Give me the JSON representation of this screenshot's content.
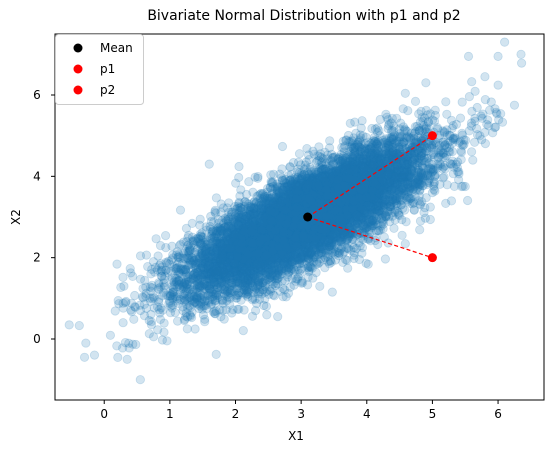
{
  "chart_data": {
    "type": "scatter",
    "title": "Bivariate Normal Distribution with p1 and p2",
    "xlabel": "X1",
    "ylabel": "X2",
    "xlim": [
      -0.75,
      6.7
    ],
    "ylim": [
      -1.5,
      7.5
    ],
    "xticks": [
      "0",
      "1",
      "2",
      "3",
      "4",
      "5",
      "6"
    ],
    "yticks": [
      "0",
      "2",
      "4",
      "6"
    ],
    "grid": false,
    "legend_position": "top-left",
    "cloud": {
      "color": "#1f77b4",
      "alpha": 0.2,
      "mean": [
        3.1,
        3.0
      ],
      "sd": [
        0.9,
        0.9
      ],
      "correlation": 0.8,
      "n": 10000
    },
    "outliers": [
      {
        "x": -0.38,
        "y": 0.33
      },
      {
        "x": -0.28,
        "y": -0.1
      },
      {
        "x": -0.3,
        "y": -0.45
      },
      {
        "x": 0.28,
        "y": -0.22
      },
      {
        "x": 0.38,
        "y": -0.22
      },
      {
        "x": 0.35,
        "y": -0.5
      },
      {
        "x": 0.55,
        "y": -1.0
      },
      {
        "x": 0.3,
        "y": 1.3
      },
      {
        "x": 0.72,
        "y": 0.35
      },
      {
        "x": 0.75,
        "y": 1.9
      },
      {
        "x": 6.1,
        "y": 7.3
      },
      {
        "x": 6.35,
        "y": 7.0
      },
      {
        "x": 6.0,
        "y": 6.95
      },
      {
        "x": 5.8,
        "y": 6.45
      },
      {
        "x": 5.55,
        "y": 6.95
      },
      {
        "x": 6.25,
        "y": 5.75
      },
      {
        "x": 5.95,
        "y": 5.2
      },
      {
        "x": 5.5,
        "y": 3.75
      },
      {
        "x": 5.0,
        "y": 3.6
      },
      {
        "x": 4.9,
        "y": 6.3
      },
      {
        "x": 5.75,
        "y": 4.9
      },
      {
        "x": 1.6,
        "y": 4.3
      }
    ],
    "special_points": [
      {
        "name": "Mean",
        "x": 3.1,
        "y": 3.0,
        "color": "#000000"
      },
      {
        "name": "p1",
        "x": 5.0,
        "y": 5.0,
        "color": "#ff0000"
      },
      {
        "name": "p2",
        "x": 5.0,
        "y": 2.0,
        "color": "#ff0000"
      }
    ],
    "connectors": [
      {
        "from": "Mean",
        "to": "p1",
        "color": "#ff0000",
        "style": "dashed"
      },
      {
        "from": "Mean",
        "to": "p2",
        "color": "#ff0000",
        "style": "dashed"
      }
    ],
    "legend": [
      {
        "label": "Mean",
        "color": "#000000"
      },
      {
        "label": "p1",
        "color": "#ff0000"
      },
      {
        "label": "p2",
        "color": "#ff0000"
      }
    ]
  }
}
